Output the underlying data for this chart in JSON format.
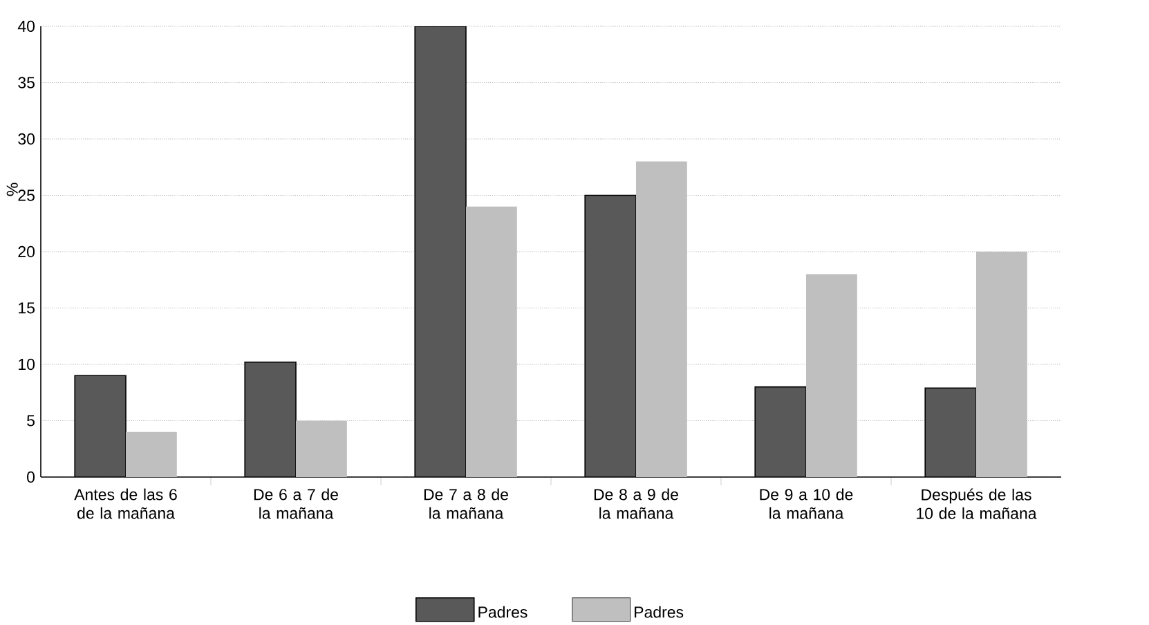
{
  "chart_data": {
    "type": "bar",
    "ylabel": "%",
    "categories": [
      "Antes de las 6 de la mañana",
      "De 6 a 7 de la mañana",
      "De 7 a 8 de la mañana",
      "De 8 a 9 de la mañana",
      "De 9 a 10 de la mañana",
      "Después de las 10 de la mañana"
    ],
    "series": [
      {
        "name": "Padres",
        "color": "#595959",
        "values": [
          9,
          10.2,
          40,
          25,
          8,
          7.9
        ]
      },
      {
        "name": "Padres",
        "color": "#bfbfbf",
        "values": [
          4,
          5,
          24,
          28,
          18,
          20
        ]
      }
    ],
    "ylim": [
      0,
      40
    ],
    "yticks": [
      0,
      5,
      10,
      15,
      20,
      25,
      30,
      35,
      40
    ],
    "grid": "y",
    "legend": "bottom"
  }
}
